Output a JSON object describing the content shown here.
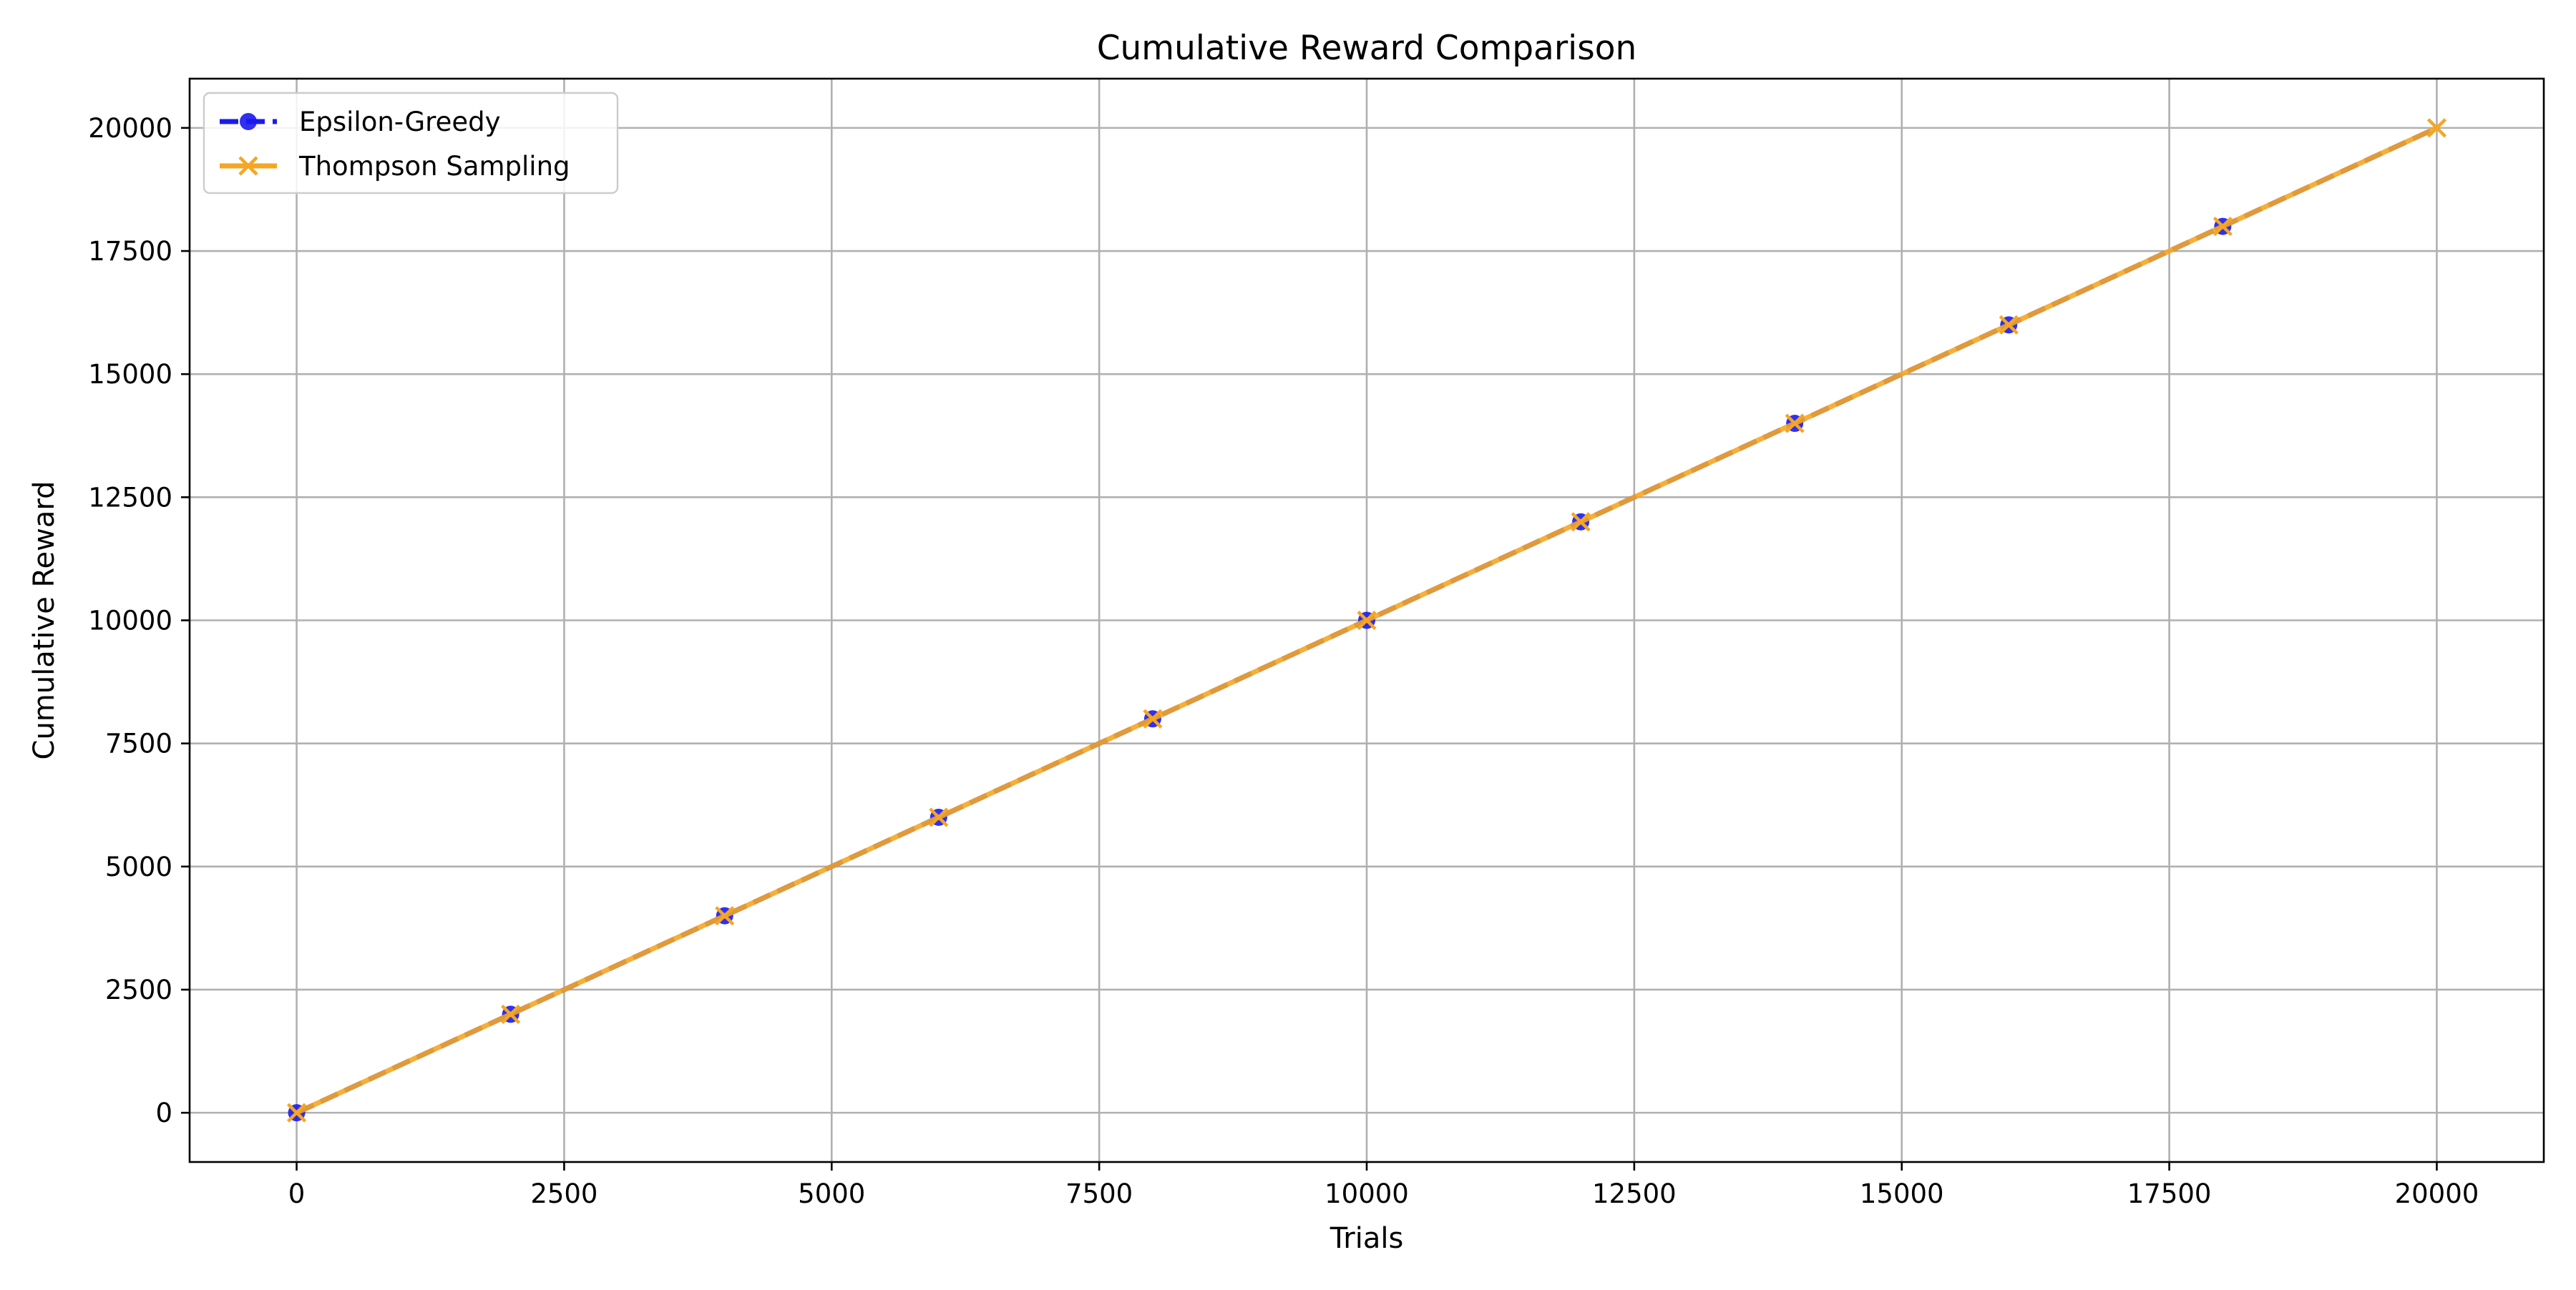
{
  "chart_data": {
    "type": "line",
    "title": "Cumulative Reward Comparison",
    "xlabel": "Trials",
    "ylabel": "Cumulative Reward",
    "xlim": [
      -1000,
      21000
    ],
    "ylim": [
      -1000,
      21000
    ],
    "xticks": [
      0,
      2500,
      5000,
      7500,
      10000,
      12500,
      15000,
      17500,
      20000
    ],
    "yticks": [
      0,
      2500,
      5000,
      7500,
      10000,
      12500,
      15000,
      17500,
      20000
    ],
    "grid": true,
    "legend_position": "top-left",
    "series": [
      {
        "name": "Epsilon-Greedy",
        "color": "#1a1aee",
        "line_style": "dashed",
        "marker": "circle",
        "x": [
          0,
          2000,
          4000,
          6000,
          8000,
          10000,
          12000,
          14000,
          16000,
          18000,
          20000
        ],
        "y": [
          0,
          2000,
          4000,
          6000,
          8000,
          10000,
          12000,
          14000,
          16000,
          18000,
          20000
        ]
      },
      {
        "name": "Thompson Sampling",
        "color": "#f5a623",
        "line_style": "solid",
        "marker": "x",
        "x": [
          0,
          2000,
          4000,
          6000,
          8000,
          10000,
          12000,
          14000,
          16000,
          18000,
          20000
        ],
        "y": [
          0,
          2000,
          4000,
          6000,
          8000,
          10000,
          12000,
          14000,
          16000,
          18000,
          20000
        ]
      }
    ]
  }
}
